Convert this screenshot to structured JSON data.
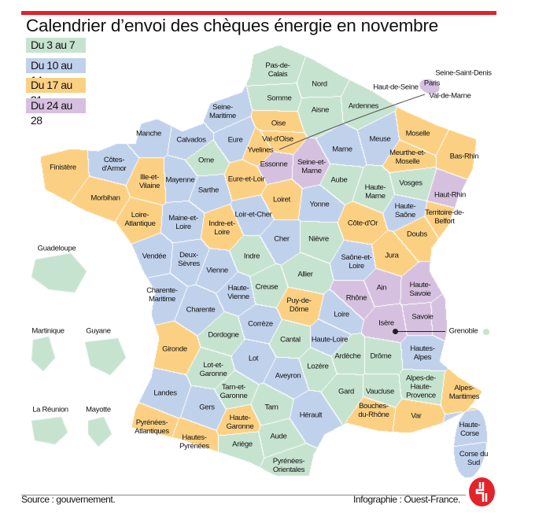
{
  "title": "Calendrier d’envoi des chèques énergie en novembre",
  "legend": [
    {
      "label": "Du 3 au 7",
      "color": "#c6e3cf"
    },
    {
      "label": "Du 10 au 14",
      "color": "#c0d1ec"
    },
    {
      "label": "Du 17 au 21",
      "color": "#fcd083"
    },
    {
      "label": "Du 24 au 28",
      "color": "#d6c0df"
    }
  ],
  "departments": [
    {
      "name": "Pas-de-Calais",
      "period": 0
    },
    {
      "name": "Nord",
      "period": 0
    },
    {
      "name": "Somme",
      "period": 0
    },
    {
      "name": "Aisne",
      "period": 0
    },
    {
      "name": "Ardennes",
      "period": 0
    },
    {
      "name": "Seine-Maritime",
      "period": 1
    },
    {
      "name": "Oise",
      "period": 2
    },
    {
      "name": "Manche",
      "period": 1
    },
    {
      "name": "Calvados",
      "period": 1
    },
    {
      "name": "Eure",
      "period": 1
    },
    {
      "name": "Val-d'Oise",
      "period": 2
    },
    {
      "name": "Yvelines",
      "period": 2
    },
    {
      "name": "Marne",
      "period": 1
    },
    {
      "name": "Meuse",
      "period": 1
    },
    {
      "name": "Moselle",
      "period": 2
    },
    {
      "name": "Meurthe-et-Moselle",
      "period": 2
    },
    {
      "name": "Bas-Rhin",
      "period": 2
    },
    {
      "name": "Finistère",
      "period": 2
    },
    {
      "name": "Côtes-d'Armor",
      "period": 1
    },
    {
      "name": "Orne",
      "period": 0
    },
    {
      "name": "Essonne",
      "period": 3
    },
    {
      "name": "Seine-et-Marne",
      "period": 3
    },
    {
      "name": "Eure-et-Loir",
      "period": 2
    },
    {
      "name": "Ille-et-Vilaine",
      "period": 2
    },
    {
      "name": "Mayenne",
      "period": 1
    },
    {
      "name": "Aube",
      "period": 0
    },
    {
      "name": "Haute-Marne",
      "period": 0
    },
    {
      "name": "Vosges",
      "period": 0
    },
    {
      "name": "Haut-Rhin",
      "period": 3
    },
    {
      "name": "Morbihan",
      "period": 2
    },
    {
      "name": "Sarthe",
      "period": 1
    },
    {
      "name": "Loiret",
      "period": 2
    },
    {
      "name": "Yonne",
      "period": 1
    },
    {
      "name": "Haute-Saône",
      "period": 1
    },
    {
      "name": "Territoire-de-Belfort",
      "period": 2
    },
    {
      "name": "Loire-Atlantique",
      "period": 2
    },
    {
      "name": "Maine-et-Loire",
      "period": 1
    },
    {
      "name": "Loir-et-Cher",
      "period": 1
    },
    {
      "name": "Indre-et-Loire",
      "period": 2
    },
    {
      "name": "Côte-d'Or",
      "period": 2
    },
    {
      "name": "Doubs",
      "period": 2
    },
    {
      "name": "Cher",
      "period": 1
    },
    {
      "name": "Nièvre",
      "period": 0
    },
    {
      "name": "Vendée",
      "period": 1
    },
    {
      "name": "Deux-Sèvres",
      "period": 1
    },
    {
      "name": "Indre",
      "period": 0
    },
    {
      "name": "Jura",
      "period": 2
    },
    {
      "name": "Saône-et-Loire",
      "period": 1
    },
    {
      "name": "Allier",
      "period": 0
    },
    {
      "name": "Vienne",
      "period": 1
    },
    {
      "name": "Creuse",
      "period": 0
    },
    {
      "name": "Haute-Vienne",
      "period": 1
    },
    {
      "name": "Charente-Maritime",
      "period": 1
    },
    {
      "name": "Rhône",
      "period": 3
    },
    {
      "name": "Ain",
      "period": 3
    },
    {
      "name": "Haute-Savoie",
      "period": 3
    },
    {
      "name": "Puy-de-Dôme",
      "period": 2
    },
    {
      "name": "Loire",
      "period": 1
    },
    {
      "name": "Charente",
      "period": 1
    },
    {
      "name": "Isère",
      "period": 3
    },
    {
      "name": "Savoie",
      "period": 3
    },
    {
      "name": "Dordogne",
      "period": 0
    },
    {
      "name": "Corrèze",
      "period": 1
    },
    {
      "name": "Cantal",
      "period": 0
    },
    {
      "name": "Haute-Loire",
      "period": 1
    },
    {
      "name": "Gironde",
      "period": 2
    },
    {
      "name": "Ardèche",
      "period": 0
    },
    {
      "name": "Drôme",
      "period": 0
    },
    {
      "name": "Hautes-Alpes",
      "period": 1
    },
    {
      "name": "Lot",
      "period": 1
    },
    {
      "name": "Lot-et-Garonne",
      "period": 0
    },
    {
      "name": "Lozère",
      "period": 0
    },
    {
      "name": "Aveyron",
      "period": 1
    },
    {
      "name": "Alpes-de-Haute-Provence",
      "period": 0
    },
    {
      "name": "Alpes-Maritimes",
      "period": 2
    },
    {
      "name": "Landes",
      "period": 1
    },
    {
      "name": "Tarn-et-Garonne",
      "period": 0
    },
    {
      "name": "Gers",
      "period": 1
    },
    {
      "name": "Tarn",
      "period": 0
    },
    {
      "name": "Gard",
      "period": 0
    },
    {
      "name": "Vaucluse",
      "period": 0
    },
    {
      "name": "Hérault",
      "period": 1
    },
    {
      "name": "Bouches-du-Rhône",
      "period": 2
    },
    {
      "name": "Var",
      "period": 2
    },
    {
      "name": "Pyrénées-Atlantiques",
      "period": 2
    },
    {
      "name": "Haute-Garonne",
      "period": 2
    },
    {
      "name": "Hautes-Pyrénées",
      "period": 2
    },
    {
      "name": "Ariège",
      "period": 0
    },
    {
      "name": "Aude",
      "period": 0
    },
    {
      "name": "Pyrénées-Orientales",
      "period": 0
    },
    {
      "name": "Haute-Corse",
      "period": 1
    },
    {
      "name": "Corse du Sud",
      "period": 1
    }
  ],
  "overseas": [
    {
      "name": "Guadeloupe",
      "period": 0
    },
    {
      "name": "Martinique",
      "period": 0
    },
    {
      "name": "Guyane",
      "period": 0
    },
    {
      "name": "La Réunion",
      "period": 0
    },
    {
      "name": "Mayotte",
      "period": 0
    }
  ],
  "paris_inset": {
    "labels": [
      "Paris",
      "Seine-Saint-Denis",
      "Haut-de-Seine",
      "Val-de-Marne"
    ],
    "period": 3
  },
  "city": {
    "name": "Grenoble"
  },
  "footer": {
    "source": "Source : gouvernement.",
    "credit": "Infographie : Ouest-France."
  }
}
